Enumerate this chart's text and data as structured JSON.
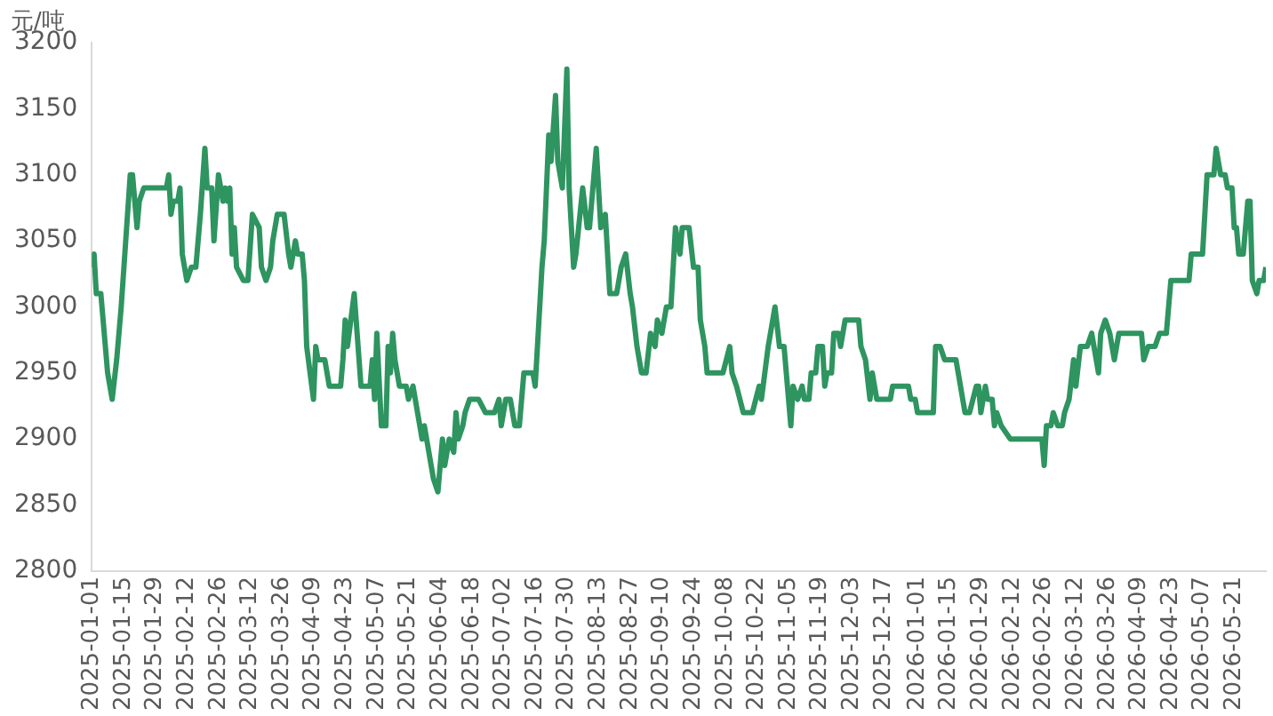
{
  "chart_data": {
    "type": "line",
    "ylabel": "元/吨",
    "color": "#2e9460",
    "grid": false,
    "legend": false,
    "marker": "none",
    "line_style": "solid",
    "xlim": [
      "2025-01-01",
      "2026-06-04"
    ],
    "ylim": [
      2800,
      3200
    ],
    "yticks": [
      2800,
      2850,
      2900,
      2950,
      3000,
      3050,
      3100,
      3150,
      3200
    ],
    "xticks": [
      "2025-01-01",
      "2025-01-15",
      "2025-01-29",
      "2025-02-12",
      "2025-02-26",
      "2025-03-12",
      "2025-03-26",
      "2025-04-09",
      "2025-04-23",
      "2025-05-07",
      "2025-05-21",
      "2025-06-04",
      "2025-06-18",
      "2025-07-02",
      "2025-07-16",
      "2025-07-30",
      "2025-08-13",
      "2025-08-27",
      "2025-09-10",
      "2025-09-24",
      "2025-10-08",
      "2025-10-22",
      "2025-11-05",
      "2025-11-19",
      "2025-12-03",
      "2025-12-17",
      "2026-01-01",
      "2026-01-15",
      "2026-01-29",
      "2026-02-12",
      "2026-02-26",
      "2026-03-12",
      "2026-03-26",
      "2026-04-09",
      "2026-04-23",
      "2026-05-07",
      "2026-05-21"
    ],
    "x": [
      "2025-01-01",
      "2025-01-02",
      "2025-01-03",
      "2025-01-05",
      "2025-01-08",
      "2025-01-10",
      "2025-01-12",
      "2025-01-14",
      "2025-01-18",
      "2025-01-19",
      "2025-01-20",
      "2025-01-21",
      "2025-01-22",
      "2025-01-24",
      "2025-02-03",
      "2025-02-04",
      "2025-02-05",
      "2025-02-06",
      "2025-02-08",
      "2025-02-09",
      "2025-02-10",
      "2025-02-12",
      "2025-02-14",
      "2025-02-16",
      "2025-02-18",
      "2025-02-20",
      "2025-02-21",
      "2025-02-23",
      "2025-02-24",
      "2025-02-26",
      "2025-02-28",
      "2025-03-01",
      "2025-03-02",
      "2025-03-03",
      "2025-03-04",
      "2025-03-05",
      "2025-03-06",
      "2025-03-09",
      "2025-03-11",
      "2025-03-13",
      "2025-03-16",
      "2025-03-17",
      "2025-03-19",
      "2025-03-21",
      "2025-03-22",
      "2025-03-24",
      "2025-03-27",
      "2025-03-29",
      "2025-03-30",
      "2025-04-01",
      "2025-04-02",
      "2025-04-04",
      "2025-04-05",
      "2025-04-06",
      "2025-04-09",
      "2025-04-10",
      "2025-04-11",
      "2025-04-14",
      "2025-04-16",
      "2025-04-21",
      "2025-04-22",
      "2025-04-23",
      "2025-04-24",
      "2025-04-27",
      "2025-04-30",
      "2025-05-04",
      "2025-05-05",
      "2025-05-06",
      "2025-05-07",
      "2025-05-09",
      "2025-05-11",
      "2025-05-12",
      "2025-05-13",
      "2025-05-14",
      "2025-05-15",
      "2025-05-17",
      "2025-05-20",
      "2025-05-21",
      "2025-05-23",
      "2025-05-25",
      "2025-05-27",
      "2025-05-28",
      "2025-05-30",
      "2025-06-01",
      "2025-06-03",
      "2025-06-05",
      "2025-06-06",
      "2025-06-08",
      "2025-06-10",
      "2025-06-11",
      "2025-06-12",
      "2025-06-14",
      "2025-06-15",
      "2025-06-17",
      "2025-06-21",
      "2025-06-24",
      "2025-06-28",
      "2025-06-30",
      "2025-07-01",
      "2025-07-03",
      "2025-07-05",
      "2025-07-07",
      "2025-07-09",
      "2025-07-11",
      "2025-07-15",
      "2025-07-16",
      "2025-07-19",
      "2025-07-20",
      "2025-07-22",
      "2025-07-23",
      "2025-07-25",
      "2025-07-26",
      "2025-07-28",
      "2025-07-30",
      "2025-07-31",
      "2025-08-02",
      "2025-08-03",
      "2025-08-06",
      "2025-08-08",
      "2025-08-09",
      "2025-08-12",
      "2025-08-14",
      "2025-08-16",
      "2025-08-18",
      "2025-08-21",
      "2025-08-23",
      "2025-08-25",
      "2025-08-27",
      "2025-08-28",
      "2025-08-30",
      "2025-09-01",
      "2025-09-03",
      "2025-09-05",
      "2025-09-07",
      "2025-09-08",
      "2025-09-10",
      "2025-09-12",
      "2025-09-14",
      "2025-09-16",
      "2025-09-18",
      "2025-09-19",
      "2025-09-22",
      "2025-09-24",
      "2025-09-26",
      "2025-09-27",
      "2025-09-29",
      "2025-09-30",
      "2025-10-07",
      "2025-10-10",
      "2025-10-11",
      "2025-10-13",
      "2025-10-16",
      "2025-10-20",
      "2025-10-23",
      "2025-10-24",
      "2025-10-27",
      "2025-10-30",
      "2025-11-01",
      "2025-11-03",
      "2025-11-06",
      "2025-11-07",
      "2025-11-09",
      "2025-11-11",
      "2025-11-12",
      "2025-11-14",
      "2025-11-15",
      "2025-11-17",
      "2025-11-18",
      "2025-11-20",
      "2025-11-21",
      "2025-11-22",
      "2025-11-24",
      "2025-11-25",
      "2025-11-27",
      "2025-11-28",
      "2025-11-30",
      "2025-12-06",
      "2025-12-07",
      "2025-12-09",
      "2025-12-11",
      "2025-12-12",
      "2025-12-14",
      "2025-12-20",
      "2025-12-21",
      "2025-12-28",
      "2025-12-29",
      "2025-12-31",
      "2026-01-01",
      "2026-01-08",
      "2026-01-09",
      "2026-01-11",
      "2026-01-13",
      "2026-01-18",
      "2026-01-19",
      "2026-01-22",
      "2026-01-24",
      "2026-01-27",
      "2026-01-28",
      "2026-01-29",
      "2026-01-31",
      "2026-02-01",
      "2026-02-03",
      "2026-02-04",
      "2026-02-05",
      "2026-02-07",
      "2026-02-11",
      "2026-02-25",
      "2026-02-26",
      "2026-02-27",
      "2026-03-01",
      "2026-03-02",
      "2026-03-04",
      "2026-03-06",
      "2026-03-07",
      "2026-03-09",
      "2026-03-11",
      "2026-03-12",
      "2026-03-14",
      "2026-03-17",
      "2026-03-19",
      "2026-03-20",
      "2026-03-22",
      "2026-03-23",
      "2026-03-25",
      "2026-03-27",
      "2026-03-29",
      "2026-03-31",
      "2026-04-10",
      "2026-04-11",
      "2026-04-13",
      "2026-04-16",
      "2026-04-18",
      "2026-04-21",
      "2026-04-23",
      "2026-05-01",
      "2026-05-02",
      "2026-05-07",
      "2026-05-09",
      "2026-05-12",
      "2026-05-13",
      "2026-05-15",
      "2026-05-17",
      "2026-05-18",
      "2026-05-20",
      "2026-05-21",
      "2026-05-22",
      "2026-05-23",
      "2026-05-25",
      "2026-05-27",
      "2026-05-28",
      "2026-05-29",
      "2026-05-31",
      "2026-06-01",
      "2026-06-03",
      "2026-06-04"
    ],
    "values": [
      3030,
      3040,
      3010,
      3010,
      2950,
      2930,
      2960,
      3000,
      3100,
      3100,
      3080,
      3060,
      3080,
      3090,
      3090,
      3100,
      3070,
      3080,
      3080,
      3090,
      3040,
      3020,
      3030,
      3030,
      3070,
      3120,
      3090,
      3090,
      3050,
      3100,
      3080,
      3090,
      3080,
      3090,
      3040,
      3060,
      3030,
      3020,
      3020,
      3070,
      3060,
      3030,
      3020,
      3030,
      3050,
      3070,
      3070,
      3040,
      3030,
      3050,
      3040,
      3040,
      3020,
      2970,
      2930,
      2970,
      2960,
      2960,
      2940,
      2940,
      2960,
      2990,
      2970,
      3010,
      2940,
      2940,
      2960,
      2930,
      2980,
      2910,
      2910,
      2970,
      2950,
      2980,
      2960,
      2940,
      2940,
      2930,
      2940,
      2920,
      2900,
      2910,
      2890,
      2870,
      2860,
      2900,
      2880,
      2900,
      2890,
      2920,
      2900,
      2910,
      2920,
      2930,
      2930,
      2920,
      2920,
      2930,
      2910,
      2930,
      2930,
      2910,
      2910,
      2950,
      2950,
      2940,
      3030,
      3050,
      3130,
      3110,
      3160,
      3110,
      3090,
      3180,
      3090,
      3030,
      3040,
      3090,
      3060,
      3060,
      3120,
      3060,
      3070,
      3010,
      3010,
      3030,
      3040,
      3010,
      3000,
      2970,
      2950,
      2950,
      2980,
      2970,
      2990,
      2980,
      3000,
      3000,
      3060,
      3040,
      3060,
      3060,
      3030,
      3030,
      2990,
      2970,
      2950,
      2950,
      2970,
      2950,
      2940,
      2920,
      2920,
      2940,
      2930,
      2970,
      3000,
      2970,
      2970,
      2910,
      2940,
      2930,
      2940,
      2930,
      2930,
      2950,
      2950,
      2970,
      2970,
      2940,
      2950,
      2950,
      2980,
      2980,
      2970,
      2990,
      2990,
      2970,
      2960,
      2930,
      2950,
      2930,
      2930,
      2940,
      2940,
      2930,
      2930,
      2920,
      2920,
      2970,
      2970,
      2960,
      2960,
      2950,
      2920,
      2920,
      2940,
      2940,
      2920,
      2940,
      2930,
      2930,
      2910,
      2920,
      2910,
      2900,
      2900,
      2880,
      2910,
      2910,
      2920,
      2910,
      2910,
      2920,
      2930,
      2960,
      2940,
      2970,
      2970,
      2980,
      2970,
      2950,
      2980,
      2990,
      2980,
      2960,
      2980,
      2980,
      2960,
      2970,
      2970,
      2980,
      2980,
      3020,
      3020,
      3040,
      3040,
      3100,
      3100,
      3120,
      3100,
      3100,
      3090,
      3090,
      3060,
      3060,
      3040,
      3040,
      3080,
      3080,
      3020,
      3010,
      3020,
      3020,
      3030
    ]
  }
}
